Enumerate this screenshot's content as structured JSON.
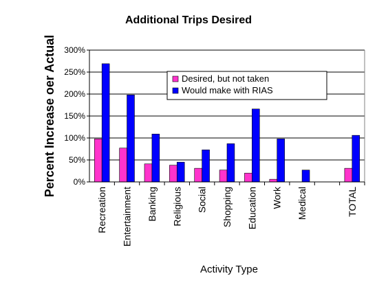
{
  "chart_data": {
    "type": "bar",
    "title": "Additional Trips Desired",
    "x_label": "Activity Type",
    "y_label": "Percent Increase oer Actual",
    "categories": [
      "Recreation",
      "Entertainment",
      "Banking",
      "Religious",
      "Social",
      "Shopping",
      "Education",
      "Work",
      "Medical",
      null,
      "TOTAL"
    ],
    "series": [
      {
        "name": "Desired, but not taken",
        "color": "#ff33cc",
        "values": [
          98,
          77,
          41,
          38,
          31,
          27,
          20,
          6,
          0,
          null,
          31
        ]
      },
      {
        "name": "Would make with RIAS",
        "color": "#0000ff",
        "values": [
          269,
          198,
          109,
          45,
          73,
          87,
          166,
          98,
          27,
          null,
          106
        ]
      }
    ],
    "ylim": [
      0,
      300
    ],
    "yticks": [
      {
        "value": 0,
        "label": "0%"
      },
      {
        "value": 50,
        "label": "50%"
      },
      {
        "value": 100,
        "label": "100%"
      },
      {
        "value": 150,
        "label": "150%"
      },
      {
        "value": 200,
        "label": "200%"
      },
      {
        "value": 250,
        "label": "250%"
      },
      {
        "value": 300,
        "label": "300%"
      }
    ],
    "grid": true
  }
}
